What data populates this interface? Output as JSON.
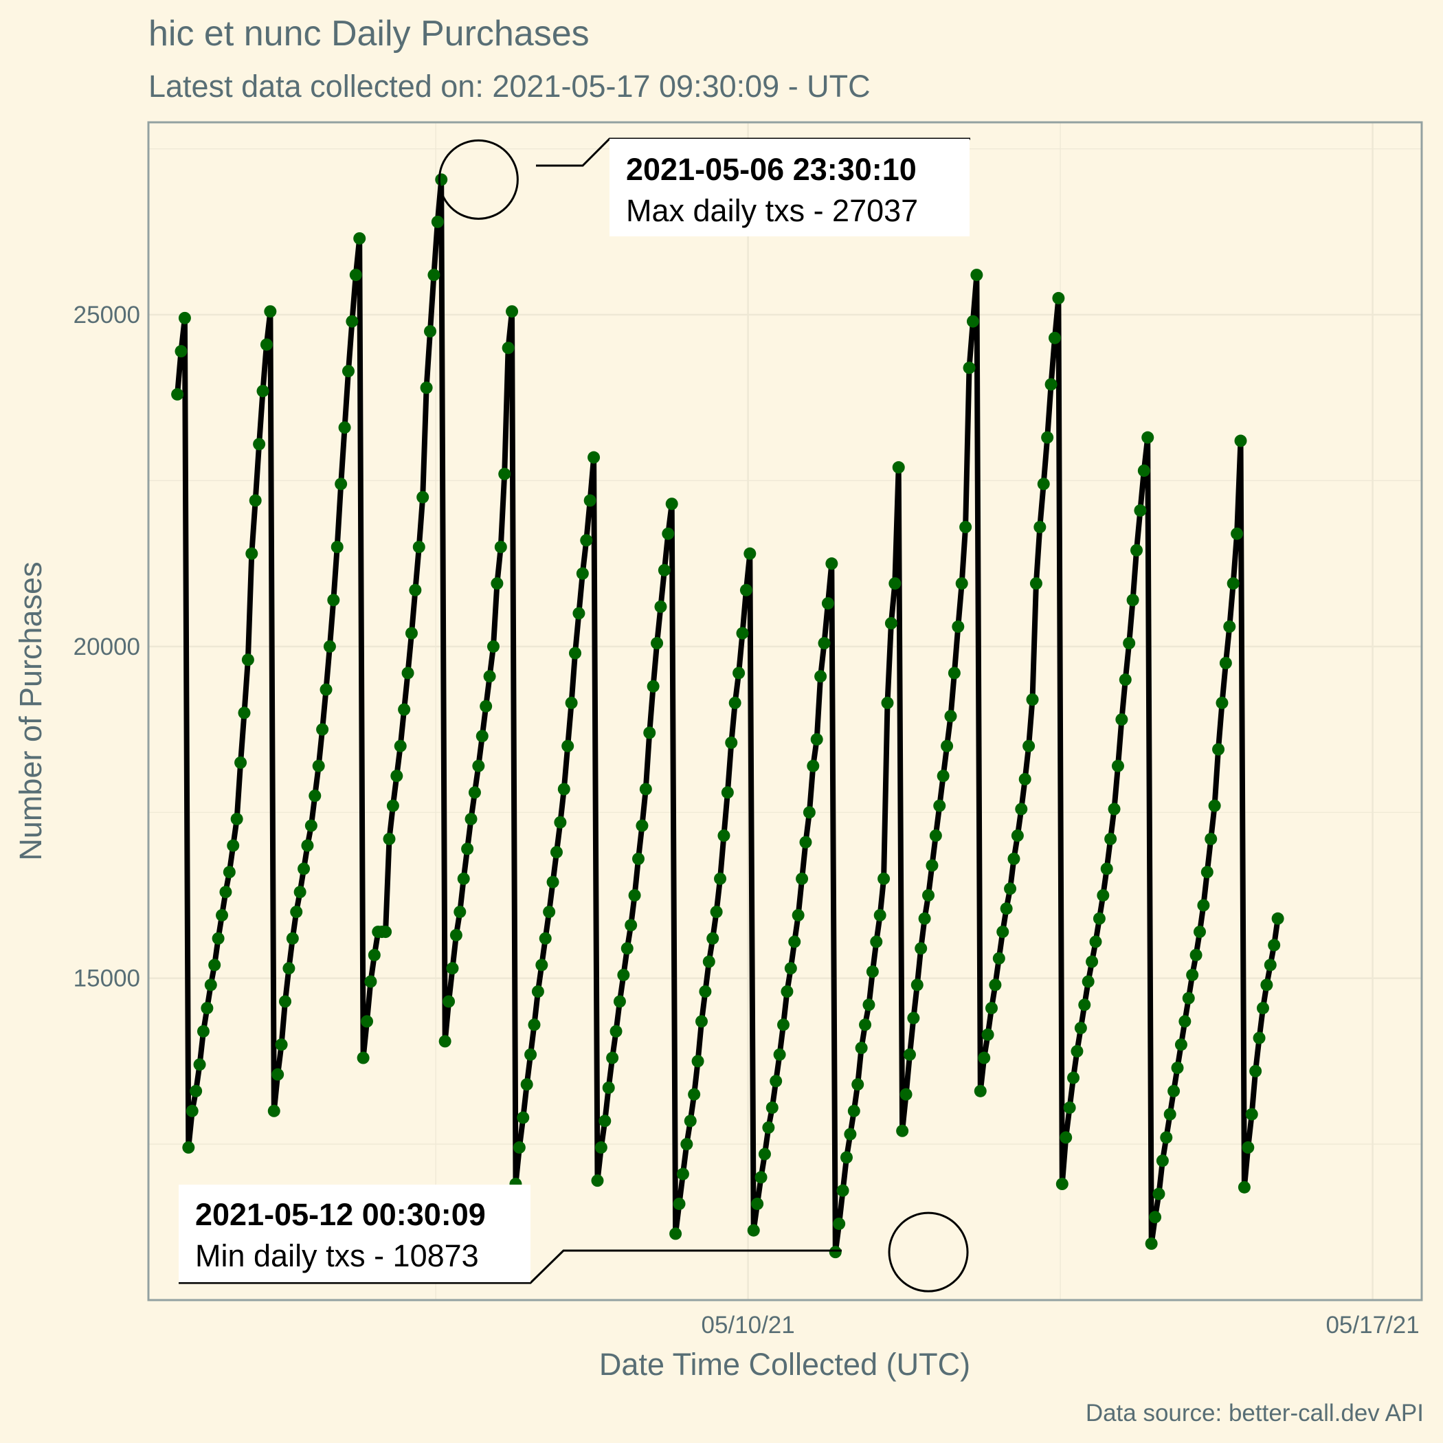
{
  "chart_data": {
    "type": "line",
    "title": "hic et nunc Daily Purchases",
    "subtitle": "Latest data collected on: 2021-05-17 09:30:09  - UTC",
    "xlabel": "Date Time Collected (UTC)",
    "ylabel": "Number of Purchases",
    "caption": "Data source: better-call.dev API",
    "x_ticks": [
      {
        "date": "2021-05-10",
        "label": "05/10/21"
      },
      {
        "date": "2021-05-17",
        "label": "05/17/21"
      }
    ],
    "y_ticks": [
      15000,
      20000,
      25000
    ],
    "ylim": [
      10150,
      27900
    ],
    "xlim_days_from_2021_05_10": [
      -6.72,
      7.55
    ],
    "grid": true,
    "colors": {
      "background": "#fdf6e3",
      "grid": "#eee8d5",
      "axis_text": "#586e75",
      "line": "#000000",
      "points": "#006400"
    },
    "series_x_start": "2021-05-03 14:30:00",
    "series_step_hours": 1,
    "series": [
      {
        "name": "",
        "values": [
          23800,
          24450,
          24950,
          12450,
          13000,
          13300,
          13700,
          14200,
          14550,
          14900,
          15200,
          15600,
          15950,
          16300,
          16600,
          17000,
          17400,
          18250,
          19000,
          19800,
          21400,
          22200,
          23050,
          23850,
          24550,
          25050,
          13000,
          13550,
          14000,
          14650,
          15150,
          15600,
          16000,
          16300,
          16650,
          17000,
          17300,
          17750,
          18200,
          18750,
          19350,
          20000,
          20700,
          21500,
          22450,
          23300,
          24150,
          24900,
          25600,
          26150,
          13800,
          14350,
          14950,
          15350,
          15700,
          15700,
          15700,
          17100,
          17600,
          18050,
          18500,
          19050,
          19600,
          20200,
          20850,
          21500,
          22250,
          23900,
          24750,
          25600,
          26400,
          27037,
          14050,
          14650,
          15150,
          15650,
          16000,
          16500,
          16950,
          17400,
          17800,
          18200,
          18650,
          19100,
          19550,
          20000,
          20950,
          21500,
          22600,
          24500,
          25050,
          11900,
          12450,
          12900,
          13400,
          13850,
          14300,
          14800,
          15200,
          15600,
          16000,
          16450,
          16900,
          17350,
          17850,
          18500,
          19150,
          19900,
          20500,
          21100,
          21600,
          22200,
          22850,
          11950,
          12450,
          12850,
          13350,
          13800,
          14200,
          14650,
          15050,
          15450,
          15800,
          16250,
          16800,
          17300,
          17850,
          18700,
          19400,
          20050,
          20600,
          21150,
          21700,
          22150,
          11150,
          11600,
          12050,
          12500,
          12850,
          13250,
          13750,
          14350,
          14800,
          15250,
          15600,
          16000,
          16500,
          17150,
          17800,
          18550,
          19150,
          19600,
          20200,
          20850,
          21400,
          11200,
          11600,
          12000,
          12350,
          12750,
          13050,
          13450,
          13850,
          14300,
          14800,
          15150,
          15550,
          15950,
          16500,
          17050,
          17500,
          18200,
          18600,
          19550,
          20050,
          20650,
          21250,
          10873,
          11300,
          11800,
          12300,
          12650,
          13000,
          13400,
          13950,
          14300,
          14600,
          15100,
          15550,
          15950,
          16500,
          19150,
          20350,
          20950,
          22700,
          12700,
          13250,
          13850,
          14400,
          14900,
          15450,
          15900,
          16250,
          16700,
          17150,
          17600,
          18050,
          18500,
          18950,
          19600,
          20300,
          20950,
          21800,
          24200,
          24900,
          25600,
          13300,
          13800,
          14150,
          14550,
          14900,
          15300,
          15700,
          16050,
          16350,
          16800,
          17150,
          17550,
          18000,
          18500,
          19200,
          20950,
          21800,
          22450,
          23150,
          23950,
          24650,
          25250,
          11900,
          12600,
          13050,
          13500,
          13900,
          14250,
          14600,
          14950,
          15250,
          15550,
          15900,
          16250,
          16650,
          17100,
          17550,
          18200,
          18900,
          19500,
          20050,
          20700,
          21450,
          22050,
          22650,
          23150,
          11000,
          11400,
          11750,
          12250,
          12600,
          12950,
          13300,
          13650,
          14000,
          14350,
          14700,
          15050,
          15350,
          15700,
          16100,
          16600,
          17100,
          17600,
          18450,
          19150,
          19750,
          20300,
          20950,
          21700,
          23100,
          11850,
          12450,
          12950,
          13600,
          14100,
          14550,
          14900,
          15200,
          15500,
          15900
        ]
      }
    ],
    "annotations": [
      {
        "title": "2021-05-06 23:30:10",
        "text": "Max daily txs - 27037",
        "date": "2021-05-06 23:30:10",
        "value": 27037
      },
      {
        "title": "2021-05-12 00:30:09",
        "text": "Min daily txs - 10873",
        "date": "2021-05-12 00:30:09",
        "value": 10873
      }
    ]
  }
}
